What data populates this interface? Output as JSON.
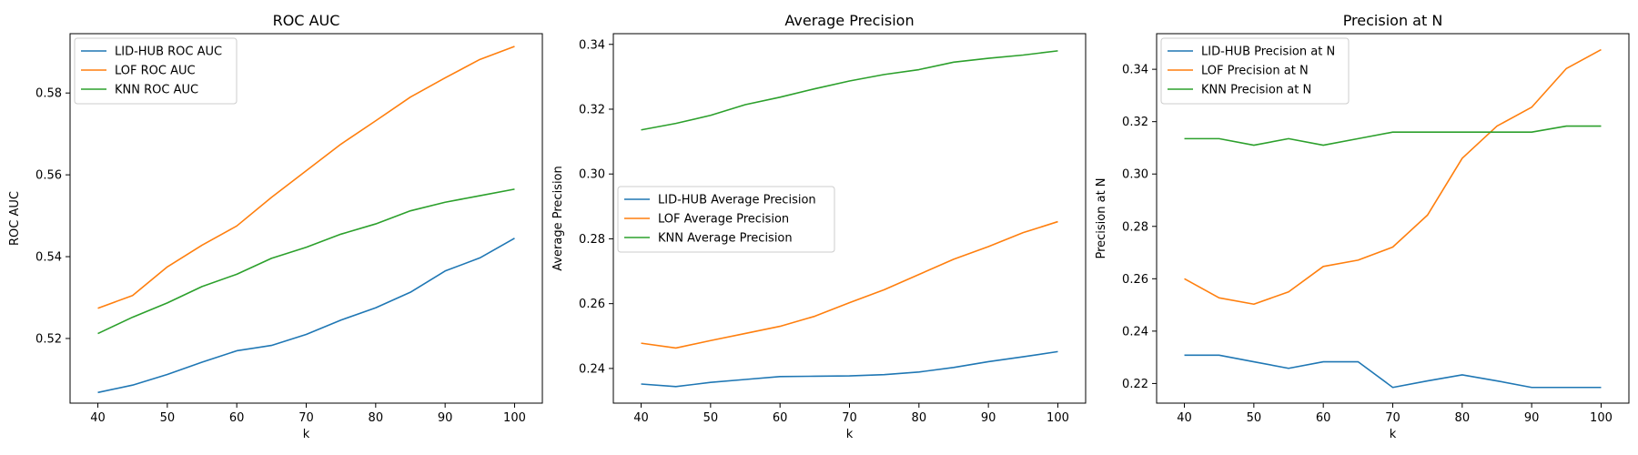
{
  "chart_data": [
    {
      "type": "line",
      "title": "ROC AUC",
      "xlabel": "k",
      "ylabel": "ROC AUC",
      "xlim": [
        36,
        104
      ],
      "ylim": [
        0.5042,
        0.5945
      ],
      "xticks": [
        40,
        50,
        60,
        70,
        80,
        90,
        100
      ],
      "yticks": [
        0.52,
        0.54,
        0.56,
        0.58
      ],
      "yformat": 2,
      "legend": "upper left",
      "x": [
        40,
        45,
        50,
        55,
        60,
        65,
        70,
        75,
        80,
        85,
        90,
        95,
        100
      ],
      "series": [
        {
          "name": "LID-HUB ROC AUC",
          "color": "#1f77b4",
          "values": [
            0.5068,
            0.5086,
            0.5112,
            0.5142,
            0.517,
            0.5183,
            0.521,
            0.5245,
            0.5275,
            0.5313,
            0.5365,
            0.5397,
            0.5445
          ]
        },
        {
          "name": "LOF ROC AUC",
          "color": "#ff7f0e",
          "values": [
            0.5274,
            0.5305,
            0.5375,
            0.5428,
            0.5475,
            0.5545,
            0.561,
            0.5675,
            0.5732,
            0.579,
            0.5837,
            0.5882,
            0.5914
          ]
        },
        {
          "name": "KNN ROC AUC",
          "color": "#2ca02c",
          "values": [
            0.5212,
            0.5252,
            0.5287,
            0.5327,
            0.5357,
            0.5396,
            0.5423,
            0.5455,
            0.548,
            0.5512,
            0.5533,
            0.5549,
            0.5565
          ]
        }
      ]
    },
    {
      "type": "line",
      "title": "Average Precision",
      "xlabel": "k",
      "ylabel": "Average Precision",
      "xlim": [
        36,
        104
      ],
      "ylim": [
        0.2293,
        0.3433
      ],
      "xticks": [
        40,
        50,
        60,
        70,
        80,
        90,
        100
      ],
      "yticks": [
        0.24,
        0.26,
        0.28,
        0.3,
        0.32,
        0.34
      ],
      "yformat": 2,
      "legend": "center left",
      "x": [
        40,
        45,
        50,
        55,
        60,
        65,
        70,
        75,
        80,
        85,
        90,
        95,
        100
      ],
      "series": [
        {
          "name": "LID-HUB Average Precision",
          "color": "#1f77b4",
          "values": [
            0.2352,
            0.2344,
            0.2357,
            0.2366,
            0.2375,
            0.2376,
            0.2377,
            0.2381,
            0.2389,
            0.2403,
            0.2421,
            0.2436,
            0.2452
          ]
        },
        {
          "name": "LOF Average Precision",
          "color": "#ff7f0e",
          "values": [
            0.2478,
            0.2463,
            0.2486,
            0.2508,
            0.253,
            0.2561,
            0.2603,
            0.2643,
            0.269,
            0.2737,
            0.2776,
            0.2819,
            0.2853
          ]
        },
        {
          "name": "KNN Average Precision",
          "color": "#2ca02c",
          "values": [
            0.3136,
            0.3156,
            0.3181,
            0.3214,
            0.3237,
            0.3263,
            0.3287,
            0.3307,
            0.3322,
            0.3345,
            0.3357,
            0.3367,
            0.338
          ]
        }
      ]
    },
    {
      "type": "line",
      "title": "Precision at N",
      "xlabel": "k",
      "ylabel": "Precision at N",
      "xlim": [
        36,
        104
      ],
      "ylim": [
        0.2125,
        0.3536
      ],
      "xticks": [
        40,
        50,
        60,
        70,
        80,
        90,
        100
      ],
      "yticks": [
        0.22,
        0.24,
        0.26,
        0.28,
        0.3,
        0.32,
        0.34
      ],
      "yformat": 2,
      "legend": "upper left",
      "x": [
        40,
        45,
        50,
        55,
        60,
        65,
        70,
        75,
        80,
        85,
        90,
        95,
        100
      ],
      "series": [
        {
          "name": "LID-HUB Precision at N",
          "color": "#1f77b4",
          "values": [
            0.2308,
            0.2308,
            0.2283,
            0.2258,
            0.2283,
            0.2283,
            0.2185,
            0.221,
            0.2233,
            0.221,
            0.2185,
            0.2185,
            0.2185
          ]
        },
        {
          "name": "LOF Precision at N",
          "color": "#ff7f0e",
          "values": [
            0.26,
            0.2527,
            0.2503,
            0.255,
            0.2647,
            0.2671,
            0.2721,
            0.2843,
            0.306,
            0.3183,
            0.3255,
            0.3403,
            0.3475
          ]
        },
        {
          "name": "KNN Precision at N",
          "color": "#2ca02c",
          "values": [
            0.3135,
            0.3135,
            0.311,
            0.3135,
            0.311,
            0.3135,
            0.316,
            0.316,
            0.316,
            0.316,
            0.316,
            0.3183,
            0.3183
          ]
        }
      ]
    }
  ]
}
